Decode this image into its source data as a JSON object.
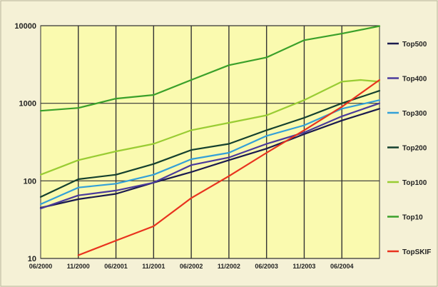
{
  "chart_data": {
    "type": "line",
    "title": "",
    "xlabel": "",
    "ylabel": "",
    "yscale": "log",
    "ylim": [
      10,
      10000
    ],
    "y_ticks": [
      "10",
      "100",
      "1000",
      "10000"
    ],
    "y_tick_values": [
      10,
      100,
      1000,
      10000
    ],
    "x_tick_labels": [
      "06/2000",
      "11/2000",
      "06/2001",
      "11/2001",
      "06/2002",
      "11/2002",
      "06/2003",
      "11/2003",
      "06/2004"
    ],
    "grid": true,
    "legend_position": "right",
    "plot_background": "#fafaaf",
    "series": [
      {
        "name": "Top500",
        "color": "#1a1a4e",
        "x": [
          0,
          1,
          2,
          3,
          4,
          5,
          6,
          7,
          8,
          9
        ],
        "values": [
          45,
          58,
          68,
          95,
          130,
          185,
          260,
          400,
          600,
          850
        ]
      },
      {
        "name": "Top400",
        "color": "#4a3a9c",
        "x": [
          0,
          1,
          2,
          3,
          4,
          5,
          6,
          7,
          8,
          9
        ],
        "values": [
          44,
          65,
          75,
          95,
          160,
          200,
          300,
          420,
          680,
          1000
        ]
      },
      {
        "name": "Top300",
        "color": "#33a0d8",
        "x": [
          0,
          1,
          2,
          3,
          4,
          5,
          6,
          7,
          8,
          9
        ],
        "values": [
          50,
          82,
          92,
          120,
          190,
          230,
          380,
          520,
          850,
          1100
        ]
      },
      {
        "name": "Top200",
        "color": "#14402e",
        "x": [
          0,
          1,
          2,
          3,
          4,
          5,
          6,
          7,
          8,
          9
        ],
        "values": [
          62,
          105,
          120,
          165,
          250,
          300,
          450,
          650,
          1000,
          1450
        ]
      },
      {
        "name": "Top100",
        "color": "#99cc33",
        "x": [
          0,
          1,
          2,
          3,
          4,
          5,
          6,
          7,
          8,
          8.5,
          9
        ],
        "values": [
          120,
          185,
          240,
          300,
          450,
          560,
          700,
          1100,
          1900,
          2000,
          1900
        ]
      },
      {
        "name": "Top10",
        "color": "#3aa02a",
        "x": [
          0,
          1,
          2,
          3,
          4,
          5,
          6,
          7,
          8,
          9
        ],
        "values": [
          800,
          870,
          1150,
          1280,
          2000,
          3100,
          3900,
          6500,
          7900,
          9900
        ]
      },
      {
        "name": "TopSKIF",
        "color": "#e8321e",
        "x": [
          1,
          2,
          3,
          4,
          5,
          6,
          7,
          8,
          9
        ],
        "values": [
          11,
          17,
          26,
          60,
          115,
          230,
          450,
          900,
          2000
        ]
      }
    ]
  }
}
